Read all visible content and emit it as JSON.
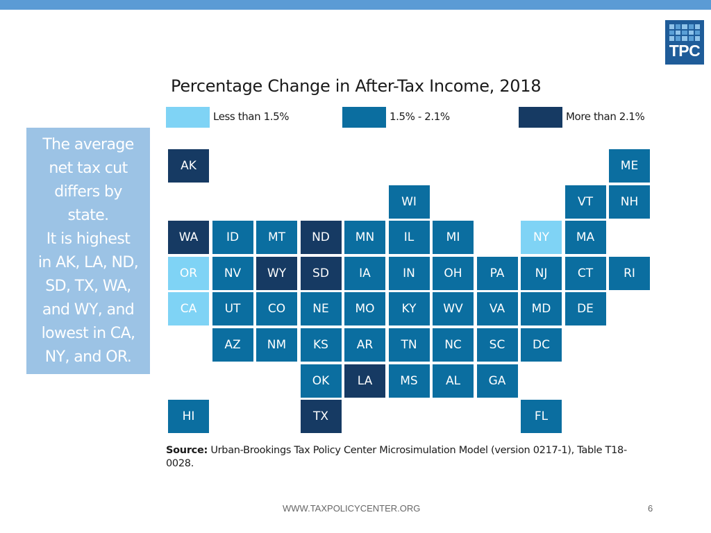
{
  "slide": {
    "note_lines": [
      "The average",
      "net tax cut",
      "differs by",
      "state.",
      "It is highest",
      "in AK, LA, ND,",
      "SD, TX, WA,",
      "and WY, and",
      "lowest in CA,",
      "NY, and OR."
    ],
    "footer": "WWW.TAXPOLICYCENTER.ORG",
    "page_number": "6",
    "logo_text": "TPC",
    "accent_color": "#5b9bd5"
  },
  "map": {
    "title": "Percentage Change in After-Tax Income, 2018",
    "legend": [
      {
        "label": "Less than 1.5%",
        "color": "#7fd3f5",
        "key": "low"
      },
      {
        "label": "1.5% - 2.1%",
        "color": "#0b6ea0",
        "key": "mid"
      },
      {
        "label": "More than 2.1%",
        "color": "#163a63",
        "key": "high"
      }
    ],
    "states": [
      {
        "abbr": "AK",
        "category": "high",
        "row": 0,
        "col": 0
      },
      {
        "abbr": "ME",
        "category": "mid",
        "row": 0,
        "col": 10
      },
      {
        "abbr": "WI",
        "category": "mid",
        "row": 1,
        "col": 5
      },
      {
        "abbr": "VT",
        "category": "mid",
        "row": 1,
        "col": 9
      },
      {
        "abbr": "NH",
        "category": "mid",
        "row": 1,
        "col": 10
      },
      {
        "abbr": "WA",
        "category": "high",
        "row": 2,
        "col": 0
      },
      {
        "abbr": "ID",
        "category": "mid",
        "row": 2,
        "col": 1
      },
      {
        "abbr": "MT",
        "category": "mid",
        "row": 2,
        "col": 2
      },
      {
        "abbr": "ND",
        "category": "high",
        "row": 2,
        "col": 3
      },
      {
        "abbr": "MN",
        "category": "mid",
        "row": 2,
        "col": 4
      },
      {
        "abbr": "IL",
        "category": "mid",
        "row": 2,
        "col": 5
      },
      {
        "abbr": "MI",
        "category": "mid",
        "row": 2,
        "col": 6
      },
      {
        "abbr": "NY",
        "category": "low",
        "row": 2,
        "col": 8
      },
      {
        "abbr": "MA",
        "category": "mid",
        "row": 2,
        "col": 9
      },
      {
        "abbr": "OR",
        "category": "low",
        "row": 3,
        "col": 0
      },
      {
        "abbr": "NV",
        "category": "mid",
        "row": 3,
        "col": 1
      },
      {
        "abbr": "WY",
        "category": "high",
        "row": 3,
        "col": 2
      },
      {
        "abbr": "SD",
        "category": "high",
        "row": 3,
        "col": 3
      },
      {
        "abbr": "IA",
        "category": "mid",
        "row": 3,
        "col": 4
      },
      {
        "abbr": "IN",
        "category": "mid",
        "row": 3,
        "col": 5
      },
      {
        "abbr": "OH",
        "category": "mid",
        "row": 3,
        "col": 6
      },
      {
        "abbr": "PA",
        "category": "mid",
        "row": 3,
        "col": 7
      },
      {
        "abbr": "NJ",
        "category": "mid",
        "row": 3,
        "col": 8
      },
      {
        "abbr": "CT",
        "category": "mid",
        "row": 3,
        "col": 9
      },
      {
        "abbr": "RI",
        "category": "mid",
        "row": 3,
        "col": 10
      },
      {
        "abbr": "CA",
        "category": "low",
        "row": 4,
        "col": 0
      },
      {
        "abbr": "UT",
        "category": "mid",
        "row": 4,
        "col": 1
      },
      {
        "abbr": "CO",
        "category": "mid",
        "row": 4,
        "col": 2
      },
      {
        "abbr": "NE",
        "category": "mid",
        "row": 4,
        "col": 3
      },
      {
        "abbr": "MO",
        "category": "mid",
        "row": 4,
        "col": 4
      },
      {
        "abbr": "KY",
        "category": "mid",
        "row": 4,
        "col": 5
      },
      {
        "abbr": "WV",
        "category": "mid",
        "row": 4,
        "col": 6
      },
      {
        "abbr": "VA",
        "category": "mid",
        "row": 4,
        "col": 7
      },
      {
        "abbr": "MD",
        "category": "mid",
        "row": 4,
        "col": 8
      },
      {
        "abbr": "DE",
        "category": "mid",
        "row": 4,
        "col": 9
      },
      {
        "abbr": "AZ",
        "category": "mid",
        "row": 5,
        "col": 1
      },
      {
        "abbr": "NM",
        "category": "mid",
        "row": 5,
        "col": 2
      },
      {
        "abbr": "KS",
        "category": "mid",
        "row": 5,
        "col": 3
      },
      {
        "abbr": "AR",
        "category": "mid",
        "row": 5,
        "col": 4
      },
      {
        "abbr": "TN",
        "category": "mid",
        "row": 5,
        "col": 5
      },
      {
        "abbr": "NC",
        "category": "mid",
        "row": 5,
        "col": 6
      },
      {
        "abbr": "SC",
        "category": "mid",
        "row": 5,
        "col": 7
      },
      {
        "abbr": "DC",
        "category": "mid",
        "row": 5,
        "col": 8
      },
      {
        "abbr": "OK",
        "category": "mid",
        "row": 6,
        "col": 3
      },
      {
        "abbr": "LA",
        "category": "high",
        "row": 6,
        "col": 4
      },
      {
        "abbr": "MS",
        "category": "mid",
        "row": 6,
        "col": 5
      },
      {
        "abbr": "AL",
        "category": "mid",
        "row": 6,
        "col": 6
      },
      {
        "abbr": "GA",
        "category": "mid",
        "row": 6,
        "col": 7
      },
      {
        "abbr": "HI",
        "category": "mid",
        "row": 7,
        "col": 0
      },
      {
        "abbr": "TX",
        "category": "high",
        "row": 7,
        "col": 3
      },
      {
        "abbr": "FL",
        "category": "mid",
        "row": 7,
        "col": 8
      }
    ],
    "source_label": "Source:",
    "source_text": "Urban-Brookings Tax Policy Center Microsimulation Model (version 0217-1), Table T18-0028."
  }
}
